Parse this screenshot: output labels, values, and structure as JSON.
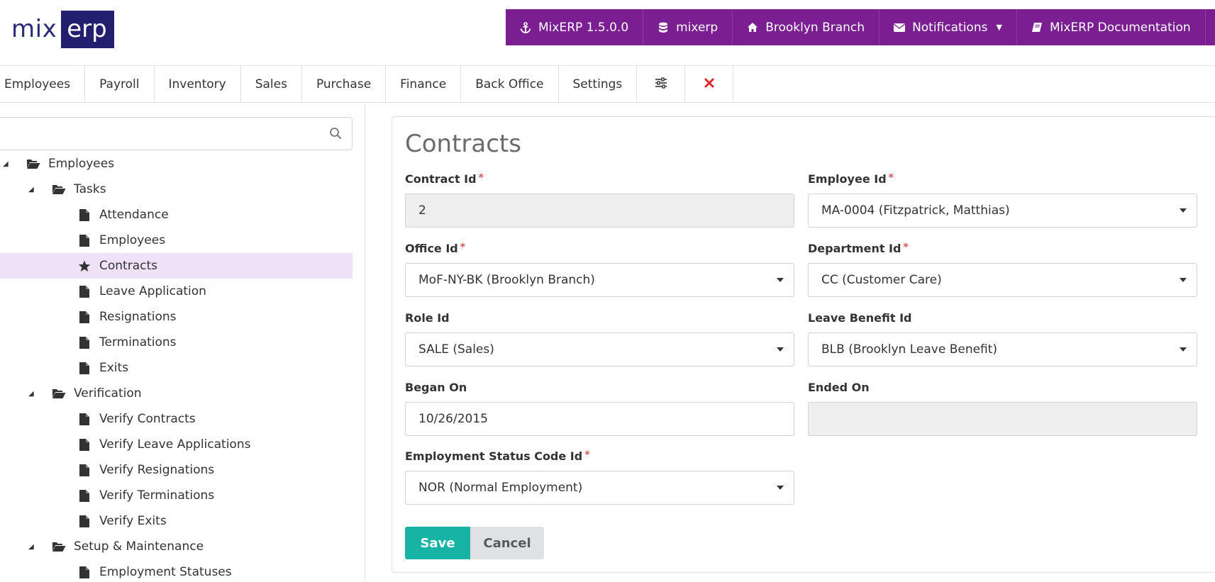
{
  "logo": {
    "part1": "mix",
    "part2": "erp"
  },
  "topbar": {
    "version": "MixERP 1.5.0.0",
    "database": "mixerp",
    "branch": "Brooklyn Branch",
    "notifications": "Notifications",
    "documentation": "MixERP Documentation"
  },
  "menu": {
    "items": [
      "Employees",
      "Payroll",
      "Inventory",
      "Sales",
      "Purchase",
      "Finance",
      "Back Office",
      "Settings"
    ]
  },
  "sidebar": {
    "search_placeholder": "",
    "tree": {
      "root": "Employees",
      "tasks": {
        "label": "Tasks",
        "items": [
          "Attendance",
          "Employees",
          "Contracts",
          "Leave Application",
          "Resignations",
          "Terminations",
          "Exits"
        ]
      },
      "verification": {
        "label": "Verification",
        "items": [
          "Verify Contracts",
          "Verify Leave Applications",
          "Verify Resignations",
          "Verify Terminations",
          "Verify Exits"
        ]
      },
      "setup": {
        "label": "Setup & Maintenance",
        "items": [
          "Employment Statuses"
        ]
      }
    }
  },
  "form": {
    "title": "Contracts",
    "contract_id": {
      "label": "Contract Id",
      "value": "2"
    },
    "employee_id": {
      "label": "Employee Id",
      "value": "MA-0004 (Fitzpatrick, Matthias)"
    },
    "office_id": {
      "label": "Office Id",
      "value": "MoF-NY-BK (Brooklyn Branch)"
    },
    "department_id": {
      "label": "Department Id",
      "value": "CC (Customer Care)"
    },
    "role_id": {
      "label": "Role Id",
      "value": "SALE (Sales)"
    },
    "leave_benefit_id": {
      "label": "Leave Benefit Id",
      "value": "BLB (Brooklyn Leave Benefit)"
    },
    "began_on": {
      "label": "Began On",
      "value": "10/26/2015"
    },
    "ended_on": {
      "label": "Ended On",
      "value": ""
    },
    "employment_status": {
      "label": "Employment Status Code Id",
      "value": "NOR (Normal Employment)"
    },
    "required_mark": "*",
    "save_label": "Save",
    "cancel_label": "Cancel"
  },
  "colors": {
    "accent": "#7a1e92",
    "save": "#17b3a5",
    "active_row": "#efe1f7",
    "close_icon": "#d9272e"
  }
}
